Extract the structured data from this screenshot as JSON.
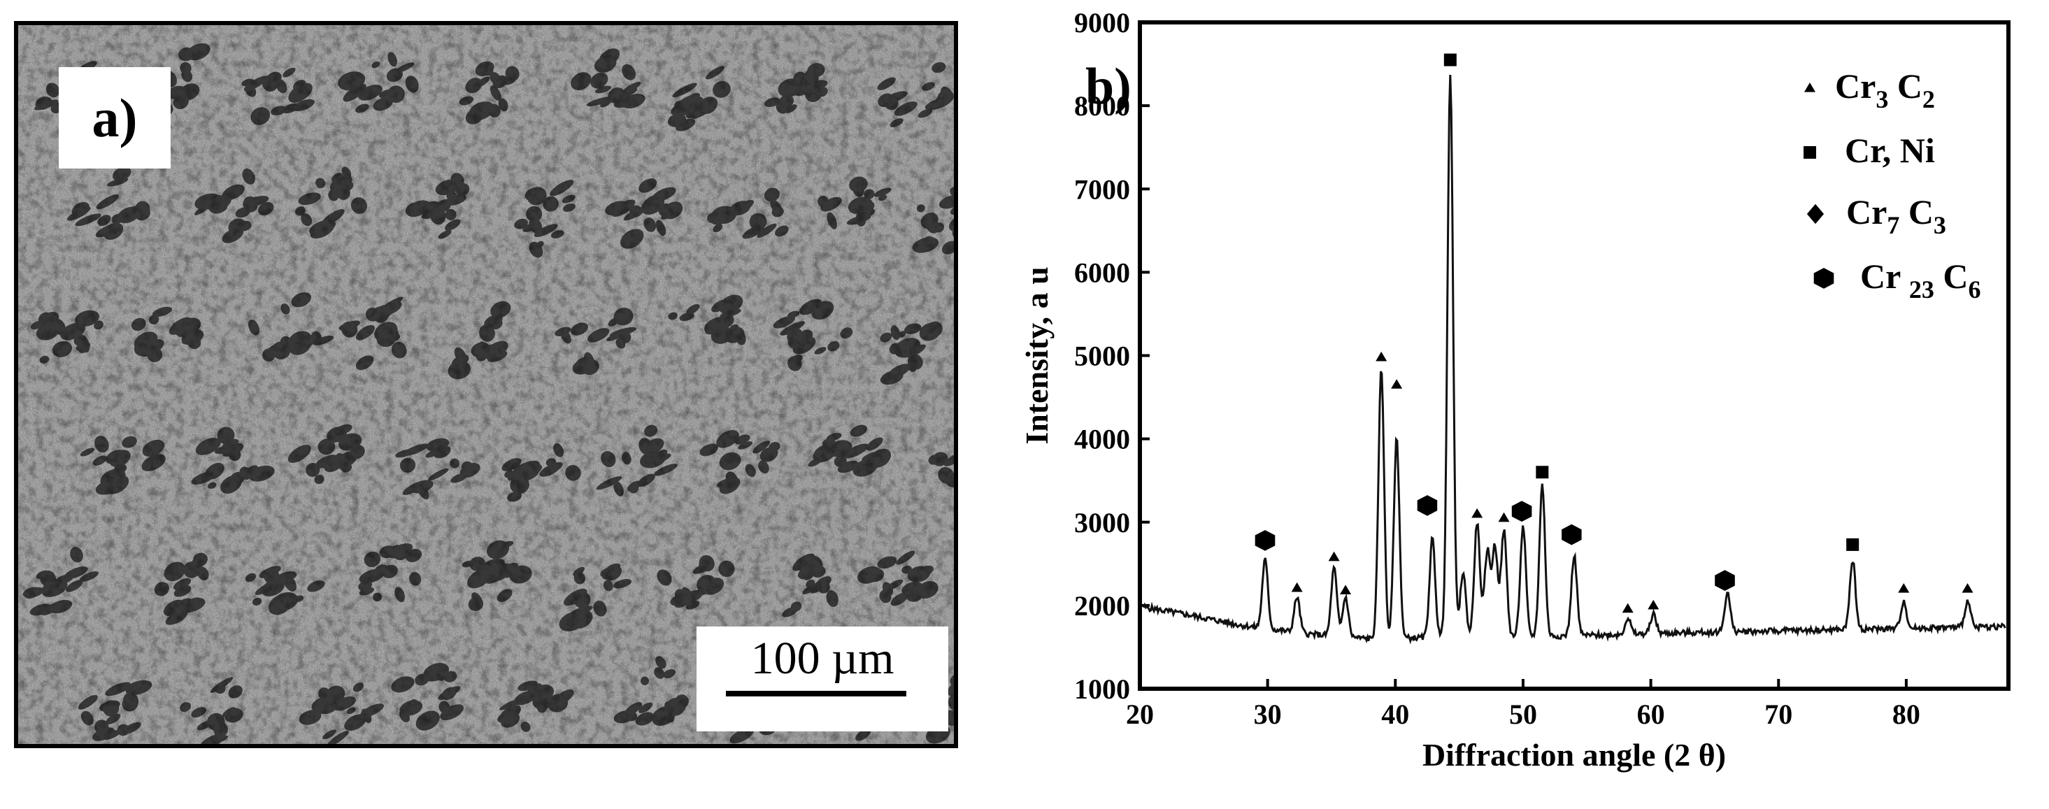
{
  "micrograph": {
    "panel_label": "a)",
    "scale_bar_label": "100 µm"
  },
  "chart_data": {
    "type": "line",
    "panel_label": "b)",
    "title": "",
    "xlabel": "Diffraction angle (2 θ)",
    "ylabel": "Intensity, a u",
    "xlim": [
      20,
      88
    ],
    "ylim": [
      1000,
      9000
    ],
    "xticks": [
      20,
      30,
      40,
      50,
      60,
      70,
      80
    ],
    "yticks": [
      1000,
      2000,
      3000,
      4000,
      5000,
      6000,
      7000,
      8000,
      9000
    ],
    "baseline": [
      [
        20.3,
        1980
      ],
      [
        24,
        1880
      ],
      [
        28,
        1760
      ],
      [
        33,
        1660
      ],
      [
        38,
        1600
      ],
      [
        45,
        1620
      ],
      [
        55,
        1640
      ],
      [
        65,
        1680
      ],
      [
        75,
        1710
      ],
      [
        88,
        1750
      ]
    ],
    "series": [
      {
        "x": [
          29.8,
          32.3,
          35.2,
          36.1,
          38.9,
          40.1,
          42.9,
          44.3,
          45.3,
          46.4,
          47.2,
          47.8,
          48.5,
          50.0,
          51.5,
          54.0,
          58.2,
          60.2,
          66.0,
          75.8,
          79.8,
          84.8
        ],
        "y": [
          2550,
          2100,
          2450,
          2100,
          4850,
          4000,
          2800,
          8350,
          2400,
          3000,
          2650,
          2700,
          2900,
          2950,
          3450,
          2600,
          1850,
          1900,
          2150,
          2550,
          2050,
          2050
        ]
      }
    ],
    "legend": [
      {
        "marker": "triangle",
        "label": "Cr3 C2",
        "label_parts": [
          "Cr",
          "3",
          " C",
          "2"
        ]
      },
      {
        "marker": "square",
        "label": "Cr, Ni",
        "label_parts": [
          "Cr, Ni",
          "",
          "",
          ""
        ]
      },
      {
        "marker": "diamond",
        "label": "Cr7 C3",
        "label_parts": [
          "Cr",
          "7",
          " C",
          "3"
        ]
      },
      {
        "marker": "hexagon",
        "label": "Cr 23 C6",
        "label_parts": [
          "Cr ",
          "23",
          " C",
          "6"
        ]
      }
    ],
    "peak_markers": [
      {
        "x": 29.8,
        "y": 2780,
        "marker": "hexagon"
      },
      {
        "x": 32.3,
        "y": 2210,
        "marker": "triangle"
      },
      {
        "x": 35.2,
        "y": 2580,
        "marker": "triangle"
      },
      {
        "x": 36.1,
        "y": 2180,
        "marker": "triangle"
      },
      {
        "x": 38.9,
        "y": 4980,
        "marker": "triangle"
      },
      {
        "x": 40.1,
        "y": 4650,
        "marker": "triangle"
      },
      {
        "x": 42.5,
        "y": 3200,
        "marker": "hexagon"
      },
      {
        "x": 44.3,
        "y": 8550,
        "marker": "square"
      },
      {
        "x": 46.4,
        "y": 3100,
        "marker": "triangle"
      },
      {
        "x": 48.5,
        "y": 3050,
        "marker": "triangle"
      },
      {
        "x": 49.9,
        "y": 3130,
        "marker": "hexagon"
      },
      {
        "x": 51.5,
        "y": 3600,
        "marker": "square"
      },
      {
        "x": 53.8,
        "y": 2850,
        "marker": "hexagon"
      },
      {
        "x": 58.2,
        "y": 1960,
        "marker": "triangle"
      },
      {
        "x": 60.2,
        "y": 2000,
        "marker": "triangle"
      },
      {
        "x": 65.8,
        "y": 2300,
        "marker": "hexagon"
      },
      {
        "x": 75.8,
        "y": 2730,
        "marker": "square"
      },
      {
        "x": 79.8,
        "y": 2200,
        "marker": "triangle"
      },
      {
        "x": 84.8,
        "y": 2200,
        "marker": "triangle"
      }
    ]
  }
}
